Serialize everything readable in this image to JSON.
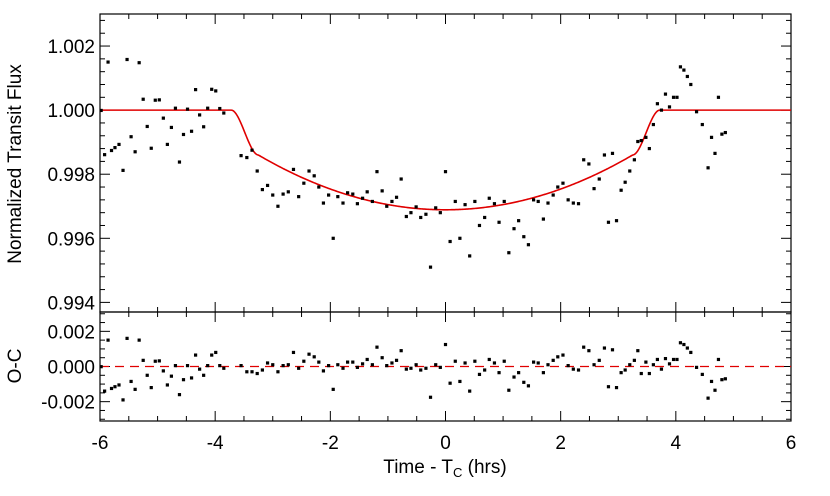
{
  "chart_data": [
    {
      "panel": "top",
      "type": "scatter",
      "ylabel": "Normalized Transit Flux",
      "xlim": [
        -6,
        6
      ],
      "ylim": [
        0.9937,
        1.003
      ],
      "x_ticks": [
        -6,
        -4,
        -2,
        0,
        2,
        4,
        6
      ],
      "y_ticks": [
        "0.994",
        "0.996",
        "0.998",
        "1.000",
        "1.002"
      ],
      "model_color": "#e00000",
      "point_color": "#000000",
      "model": {
        "baseline": 1.0,
        "ingress_start": -3.72,
        "ingress_end": -3.25,
        "egress_start": 3.25,
        "egress_end": 3.72,
        "step_depth": 0.0014,
        "center_flux": 0.99689
      },
      "points": [
        [
          -5.98,
          0.99999
        ],
        [
          -5.92,
          0.99861
        ],
        [
          -5.86,
          1.0015
        ],
        [
          -5.8,
          0.99874
        ],
        [
          -5.74,
          0.99883
        ],
        [
          -5.67,
          0.99893
        ],
        [
          -5.6,
          0.99812
        ],
        [
          -5.53,
          1.00158
        ],
        [
          -5.46,
          0.99917
        ],
        [
          -5.39,
          0.9987
        ],
        [
          -5.32,
          1.00148
        ],
        [
          -5.25,
          1.00034
        ],
        [
          -5.18,
          0.99949
        ],
        [
          -5.11,
          0.99881
        ],
        [
          -5.04,
          1.00031
        ],
        [
          -4.97,
          1.00032
        ],
        [
          -4.9,
          0.99975
        ],
        [
          -4.83,
          0.99893
        ],
        [
          -4.76,
          0.99946
        ],
        [
          -4.69,
          1.00006
        ],
        [
          -4.62,
          0.99838
        ],
        [
          -4.55,
          0.99924
        ],
        [
          -4.48,
          1.00003
        ],
        [
          -4.41,
          0.99934
        ],
        [
          -4.34,
          1.00064
        ],
        [
          -4.27,
          0.99985
        ],
        [
          -4.2,
          0.99948
        ],
        [
          -4.13,
          1.00006
        ],
        [
          -4.06,
          1.00065
        ],
        [
          -3.99,
          1.0006
        ],
        [
          -3.92,
          1.00005
        ],
        [
          -3.85,
          0.99991
        ],
        [
          -3.55,
          0.99858
        ],
        [
          -3.45,
          0.99852
        ],
        [
          -3.36,
          0.99875
        ],
        [
          -3.27,
          0.9981
        ],
        [
          -3.18,
          0.99752
        ],
        [
          -3.09,
          0.99765
        ],
        [
          -3.0,
          0.99735
        ],
        [
          -2.91,
          0.997
        ],
        [
          -2.82,
          0.99738
        ],
        [
          -2.73,
          0.99745
        ],
        [
          -2.64,
          0.99815
        ],
        [
          -2.55,
          0.9973
        ],
        [
          -2.46,
          0.99772
        ],
        [
          -2.37,
          0.9981
        ],
        [
          -2.28,
          0.99795
        ],
        [
          -2.2,
          0.9976
        ],
        [
          -2.12,
          0.9971
        ],
        [
          -2.03,
          0.99735
        ],
        [
          -1.95,
          0.996
        ],
        [
          -1.87,
          0.9973
        ],
        [
          -1.78,
          0.9971
        ],
        [
          -1.7,
          0.99742
        ],
        [
          -1.61,
          0.99738
        ],
        [
          -1.53,
          0.99708
        ],
        [
          -1.44,
          0.99725
        ],
        [
          -1.36,
          0.99745
        ],
        [
          -1.27,
          0.99715
        ],
        [
          -1.19,
          0.99808
        ],
        [
          -1.1,
          0.99748
        ],
        [
          -1.02,
          0.997
        ],
        [
          -0.93,
          0.99715
        ],
        [
          -0.85,
          0.99728
        ],
        [
          -0.77,
          0.99785
        ],
        [
          -0.68,
          0.99668
        ],
        [
          -0.6,
          0.9968
        ],
        [
          -0.51,
          0.99698
        ],
        [
          -0.43,
          0.99665
        ],
        [
          -0.34,
          0.99675
        ],
        [
          -0.26,
          0.9951
        ],
        [
          -0.17,
          0.99695
        ],
        [
          -0.09,
          0.9968
        ],
        [
          0.0,
          0.99808
        ],
        [
          0.08,
          0.9959
        ],
        [
          0.17,
          0.99715
        ],
        [
          0.25,
          0.996
        ],
        [
          0.34,
          0.99705
        ],
        [
          0.42,
          0.99545
        ],
        [
          0.51,
          0.99715
        ],
        [
          0.59,
          0.9964
        ],
        [
          0.68,
          0.99665
        ],
        [
          0.76,
          0.99725
        ],
        [
          0.85,
          0.99708
        ],
        [
          0.93,
          0.9965
        ],
        [
          1.02,
          0.99715
        ],
        [
          1.1,
          0.99555
        ],
        [
          1.19,
          0.9963
        ],
        [
          1.27,
          0.99655
        ],
        [
          1.36,
          0.99605
        ],
        [
          1.44,
          0.9958
        ],
        [
          1.53,
          0.9972
        ],
        [
          1.61,
          0.99715
        ],
        [
          1.7,
          0.9966
        ],
        [
          1.78,
          0.9971
        ],
        [
          1.87,
          0.99735
        ],
        [
          1.95,
          0.9976
        ],
        [
          2.04,
          0.99772
        ],
        [
          2.13,
          0.9972
        ],
        [
          2.22,
          0.9971
        ],
        [
          2.31,
          0.99708
        ],
        [
          2.4,
          0.99845
        ],
        [
          2.49,
          0.99832
        ],
        [
          2.58,
          0.99755
        ],
        [
          2.67,
          0.99785
        ],
        [
          2.76,
          0.9986
        ],
        [
          2.83,
          0.9965
        ],
        [
          2.9,
          0.99865
        ],
        [
          2.97,
          0.99655
        ],
        [
          3.05,
          0.9975
        ],
        [
          3.12,
          0.99775
        ],
        [
          3.2,
          0.9981
        ],
        [
          3.28,
          0.99845
        ],
        [
          3.34,
          0.99902
        ],
        [
          3.4,
          0.99905
        ],
        [
          3.48,
          0.99915
        ],
        [
          3.54,
          0.9988
        ],
        [
          3.61,
          0.99955
        ],
        [
          3.68,
          1.0002
        ],
        [
          3.75,
          1.0
        ],
        [
          3.82,
          1.0005
        ],
        [
          3.89,
          1.0001
        ],
        [
          3.96,
          1.0004
        ],
        [
          4.02,
          1.0004
        ],
        [
          4.08,
          1.00135
        ],
        [
          4.14,
          1.00125
        ],
        [
          4.2,
          1.00105
        ],
        [
          4.26,
          1.0008
        ],
        [
          4.36,
          0.99995
        ],
        [
          4.46,
          0.99955
        ],
        [
          4.56,
          0.9982
        ],
        [
          4.62,
          0.99915
        ],
        [
          4.68,
          0.99865
        ],
        [
          4.74,
          1.0004
        ],
        [
          4.8,
          0.99925
        ],
        [
          4.86,
          0.9993
        ]
      ]
    },
    {
      "panel": "bottom",
      "type": "scatter",
      "ylabel": "O-C",
      "xlabel_main": "Time - T",
      "xlabel_sub": "C",
      "xlabel_tail": " (hrs)",
      "xlim": [
        -6,
        6
      ],
      "ylim": [
        -0.0031,
        0.0031
      ],
      "x_ticks": [
        "-6",
        "-4",
        "-2",
        "0",
        "2",
        "4",
        "6"
      ],
      "y_ticks": [
        "-0.002",
        "0.000",
        "0.002"
      ],
      "zero_line_color": "#e00000",
      "point_color": "#000000",
      "residuals": [
        [
          -5.98,
          -1e-05
        ],
        [
          -5.92,
          -0.0014
        ],
        [
          -5.86,
          0.0015
        ],
        [
          -5.8,
          -0.00125
        ],
        [
          -5.74,
          -0.00115
        ],
        [
          -5.67,
          -0.00105
        ],
        [
          -5.6,
          -0.0019
        ],
        [
          -5.53,
          0.0016
        ],
        [
          -5.46,
          -0.00085
        ],
        [
          -5.39,
          -0.0013
        ],
        [
          -5.32,
          0.0015
        ],
        [
          -5.25,
          0.00035
        ],
        [
          -5.18,
          -0.0005
        ],
        [
          -5.11,
          -0.0012
        ],
        [
          -5.04,
          0.0003
        ],
        [
          -4.97,
          0.00032
        ],
        [
          -4.9,
          -0.00025
        ],
        [
          -4.83,
          -0.00105
        ],
        [
          -4.76,
          -0.00055
        ],
        [
          -4.69,
          5e-05
        ],
        [
          -4.62,
          -0.0016
        ],
        [
          -4.55,
          -0.00075
        ],
        [
          -4.48,
          5e-05
        ],
        [
          -4.41,
          -0.00065
        ],
        [
          -4.34,
          0.00065
        ],
        [
          -4.27,
          -0.00015
        ],
        [
          -4.2,
          -0.0005
        ],
        [
          -4.13,
          5e-05
        ],
        [
          -4.06,
          0.00065
        ],
        [
          -3.99,
          0.0008
        ],
        [
          -3.92,
          5e-05
        ],
        [
          -3.85,
          -0.0001
        ],
        [
          -3.55,
          5e-05
        ],
        [
          -3.45,
          -0.0003
        ],
        [
          -3.36,
          -0.0003
        ],
        [
          -3.27,
          -0.0004
        ],
        [
          -3.18,
          -0.0002
        ],
        [
          -3.09,
          0.0002
        ],
        [
          -3.0,
          0.0001
        ],
        [
          -2.91,
          -0.0003
        ],
        [
          -2.82,
          5e-05
        ],
        [
          -2.73,
          0.0001
        ],
        [
          -2.64,
          0.0008
        ],
        [
          -2.55,
          -0.0001
        ],
        [
          -2.46,
          0.0003
        ],
        [
          -2.37,
          0.0007
        ],
        [
          -2.28,
          0.00055
        ],
        [
          -2.2,
          0.00025
        ],
        [
          -2.12,
          -0.00025
        ],
        [
          -2.03,
          5e-05
        ],
        [
          -1.95,
          -0.0013
        ],
        [
          -1.87,
          0.0001
        ],
        [
          -1.78,
          -0.0001
        ],
        [
          -1.7,
          0.00025
        ],
        [
          -1.61,
          0.00025
        ],
        [
          -1.53,
          -5e-05
        ],
        [
          -1.44,
          0.00015
        ],
        [
          -1.36,
          0.0004
        ],
        [
          -1.27,
          0.0001
        ],
        [
          -1.19,
          0.0011
        ],
        [
          -1.1,
          0.0005
        ],
        [
          -1.02,
          5e-05
        ],
        [
          -0.93,
          0.0002
        ],
        [
          -0.85,
          0.00035
        ],
        [
          -0.77,
          0.0009
        ],
        [
          -0.68,
          -0.00015
        ],
        [
          -0.6,
          -0.0001
        ],
        [
          -0.51,
          0.0001
        ],
        [
          -0.43,
          -0.0002
        ],
        [
          -0.34,
          -0.0001
        ],
        [
          -0.26,
          -0.00175
        ],
        [
          -0.17,
          0.0001
        ],
        [
          -0.09,
          -5e-05
        ],
        [
          0.0,
          0.00125
        ],
        [
          0.08,
          -0.00095
        ],
        [
          0.17,
          0.0003
        ],
        [
          0.25,
          -0.00085
        ],
        [
          0.34,
          0.0002
        ],
        [
          0.42,
          -0.0014
        ],
        [
          0.51,
          0.0003
        ],
        [
          0.59,
          -0.00045
        ],
        [
          0.68,
          -0.0002
        ],
        [
          0.76,
          0.0004
        ],
        [
          0.85,
          0.0002
        ],
        [
          0.93,
          -0.00035
        ],
        [
          1.02,
          0.0003
        ],
        [
          1.1,
          -0.00135
        ],
        [
          1.19,
          -0.0006
        ],
        [
          1.27,
          -0.00035
        ],
        [
          1.36,
          -0.0009
        ],
        [
          1.44,
          -0.0011
        ],
        [
          1.53,
          0.00025
        ],
        [
          1.61,
          0.0002
        ],
        [
          1.7,
          -0.00035
        ],
        [
          1.78,
          0.0001
        ],
        [
          1.87,
          0.00035
        ],
        [
          1.95,
          0.00055
        ],
        [
          2.04,
          0.00065
        ],
        [
          2.13,
          5e-05
        ],
        [
          2.22,
          -0.00015
        ],
        [
          2.31,
          -0.0002
        ],
        [
          2.4,
          0.0011
        ],
        [
          2.49,
          0.0009
        ],
        [
          2.58,
          0.0001
        ],
        [
          2.67,
          0.00035
        ],
        [
          2.76,
          0.00105
        ],
        [
          2.83,
          -0.00115
        ],
        [
          2.9,
          0.00095
        ],
        [
          2.97,
          -0.0012
        ],
        [
          3.05,
          -0.00035
        ],
        [
          3.12,
          -0.0002
        ],
        [
          3.2,
          0.0001
        ],
        [
          3.28,
          0.00035
        ],
        [
          3.34,
          0.0009
        ],
        [
          3.4,
          -0.0004
        ],
        [
          3.48,
          0.00025
        ],
        [
          3.54,
          -0.0004
        ],
        [
          3.61,
          0.0001
        ],
        [
          3.68,
          0.0004
        ],
        [
          3.75,
          -0.00015
        ],
        [
          3.82,
          0.00045
        ],
        [
          3.89,
          0.00015
        ],
        [
          3.96,
          0.0004
        ],
        [
          4.02,
          0.0004
        ],
        [
          4.08,
          0.00135
        ],
        [
          4.14,
          0.00125
        ],
        [
          4.2,
          0.00105
        ],
        [
          4.26,
          0.0008
        ],
        [
          4.36,
          -5e-05
        ],
        [
          4.46,
          -0.00045
        ],
        [
          4.56,
          -0.0018
        ],
        [
          4.62,
          -0.00085
        ],
        [
          4.68,
          -0.00135
        ],
        [
          4.74,
          0.0004
        ],
        [
          4.8,
          -0.00075
        ],
        [
          4.86,
          -0.0007
        ]
      ]
    }
  ]
}
